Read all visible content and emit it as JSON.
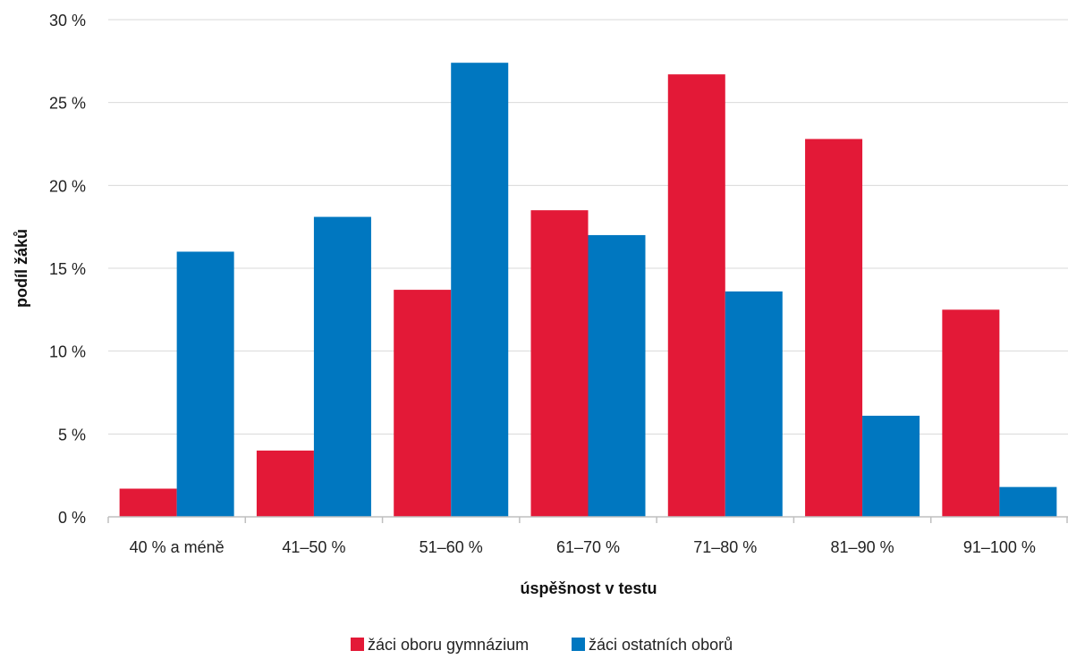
{
  "chart_data": {
    "type": "bar",
    "categories": [
      "40 % a méně",
      "41–50 %",
      "51–60 %",
      "61–70 %",
      "71–80 %",
      "81–90 %",
      "91–100 %"
    ],
    "series": [
      {
        "name": "žáci oboru gymnázium",
        "color": "#e31937",
        "values": [
          1.7,
          4.0,
          13.7,
          18.5,
          26.7,
          22.8,
          12.5
        ]
      },
      {
        "name": "žáci ostatních oborů",
        "color": "#0077c0",
        "values": [
          16.0,
          18.1,
          27.4,
          17.0,
          13.6,
          6.1,
          1.8
        ]
      }
    ],
    "title": "",
    "xlabel": "úspěšnost v testu",
    "ylabel": "podíl žáků",
    "ylim": [
      0,
      30
    ],
    "yticks": [
      0,
      5,
      10,
      15,
      20,
      25,
      30
    ],
    "ytick_labels": [
      "0 %",
      "5 %",
      "10 %",
      "15 %",
      "20 %",
      "25 %",
      "30 %"
    ],
    "grid": true,
    "legend_position": "bottom-center"
  }
}
